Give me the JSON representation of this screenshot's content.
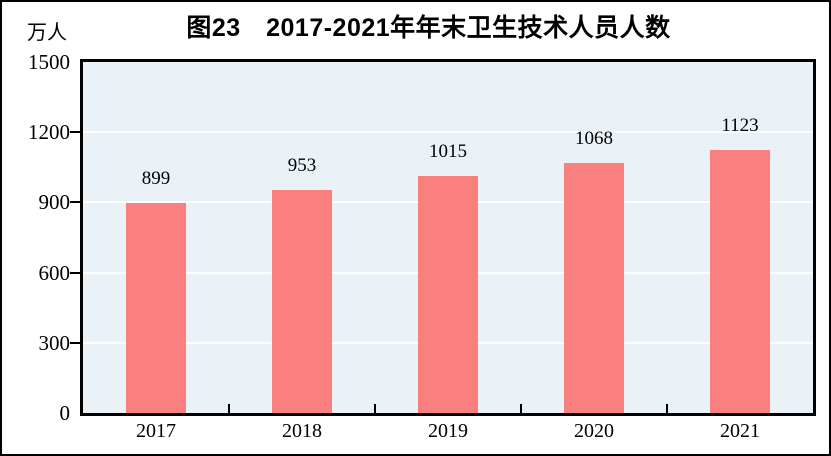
{
  "chart_data": {
    "type": "bar",
    "title": "图23　2017-2021年年末卫生技术人员人数",
    "categories": [
      "2017",
      "2018",
      "2019",
      "2020",
      "2021"
    ],
    "values": [
      899,
      953,
      1015,
      1068,
      1123
    ],
    "xlabel": "",
    "ylabel": "万人",
    "ylim": [
      0,
      1500
    ],
    "yticks": [
      0,
      300,
      600,
      900,
      1200,
      1500
    ],
    "grid": "horizontal-white-gridlines",
    "legend": "none",
    "value_labels": "above-bars",
    "colors": {
      "bar": "#FA8080",
      "plot_background": "#EAF2F8",
      "gridline": "#FFFFFF",
      "axis": "#000000",
      "text": "#000000"
    }
  }
}
